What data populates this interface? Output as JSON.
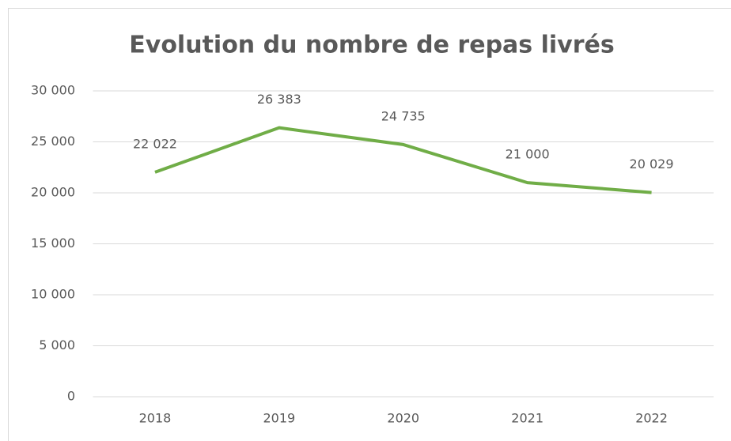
{
  "chart_data": {
    "type": "line",
    "title": "Evolution du nombre de repas livrés",
    "categories": [
      "2018",
      "2019",
      "2020",
      "2021",
      "2022"
    ],
    "values": [
      22022,
      26383,
      24735,
      21000,
      20029
    ],
    "value_labels": [
      "22 022",
      "26 383",
      "24 735",
      "21 000",
      "20 029"
    ],
    "color": "#70ad47",
    "ylim": [
      0,
      30000
    ],
    "yticks": [
      0,
      {
        "value": 5000,
        "label": "5 000"
      },
      {
        "value": 10000,
        "label": "10 000"
      },
      {
        "value": 15000,
        "label": "15 000"
      },
      {
        "value": 20000,
        "label": "20 000"
      },
      {
        "value": 25000,
        "label": "25 000"
      },
      {
        "value": 30000,
        "label": "30 000"
      }
    ],
    "grid": true
  }
}
